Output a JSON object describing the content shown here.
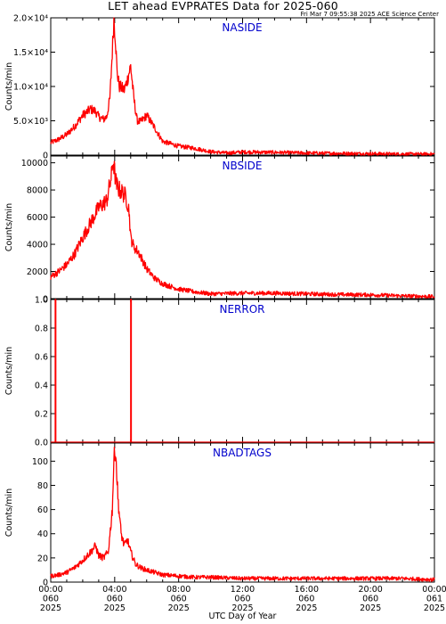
{
  "title": "LET ahead EVPRATES Data for 2025-060",
  "subtitle": "Fri Mar  7 09:55:38 2025 ACE Science Center",
  "xlabel": "UTC Day of Year",
  "colors": {
    "trace": "#ff0000",
    "panel_label": "#0000cc",
    "axis": "#000000"
  },
  "chart_data": [
    {
      "type": "line",
      "panel": "NASIDE",
      "ylabel": "Counts/min",
      "ylim": [
        0,
        20000
      ],
      "yticks": [
        {
          "v": 0,
          "label": "0"
        },
        {
          "v": 5000,
          "label": "5.0×10³"
        },
        {
          "v": 10000,
          "label": "1.0×10⁴"
        },
        {
          "v": 15000,
          "label": "1.5×10⁴"
        },
        {
          "v": 20000,
          "label": "2.0×10⁴"
        }
      ],
      "x": [
        0,
        0.5,
        1,
        1.5,
        2,
        2.5,
        2.8,
        3,
        3.3,
        3.5,
        3.7,
        3.85,
        3.95,
        4.05,
        4.15,
        4.3,
        4.6,
        4.8,
        5,
        5.2,
        5.4,
        5.6,
        6,
        6.5,
        7,
        8,
        9,
        10,
        11,
        12,
        14,
        16,
        18,
        20,
        22,
        24
      ],
      "values": [
        1800,
        2300,
        3000,
        4200,
        5800,
        6700,
        6400,
        5600,
        5200,
        5600,
        8200,
        15000,
        20000,
        17000,
        12000,
        10000,
        9500,
        11000,
        13000,
        8200,
        5100,
        4800,
        5800,
        4000,
        2000,
        1300,
        1000,
        500,
        300,
        450,
        400,
        300,
        250,
        200,
        150,
        150
      ]
    },
    {
      "type": "line",
      "panel": "NBSIDE",
      "ylabel": "Counts/min",
      "ylim": [
        0,
        10500
      ],
      "yticks": [
        {
          "v": 0,
          "label": "0"
        },
        {
          "v": 2000,
          "label": "2000"
        },
        {
          "v": 4000,
          "label": "4000"
        },
        {
          "v": 6000,
          "label": "6000"
        },
        {
          "v": 8000,
          "label": "8000"
        },
        {
          "v": 10000,
          "label": "10000"
        }
      ],
      "x": [
        0,
        0.5,
        1,
        1.5,
        2,
        2.5,
        3,
        3.5,
        3.8,
        3.9,
        4.0,
        4.1,
        4.3,
        4.5,
        4.7,
        4.9,
        5.0,
        5.2,
        5.5,
        6,
        6.5,
        7,
        8,
        9,
        10,
        12,
        14,
        16,
        18,
        20,
        22,
        24
      ],
      "values": [
        1600,
        2000,
        2500,
        3300,
        4500,
        5600,
        6700,
        7200,
        9000,
        10200,
        9300,
        8400,
        8000,
        7800,
        7500,
        6500,
        4500,
        3800,
        3400,
        2200,
        1500,
        1100,
        700,
        500,
        350,
        400,
        400,
        350,
        300,
        280,
        200,
        150
      ]
    },
    {
      "type": "line",
      "panel": "NERROR",
      "ylabel": "Counts/min",
      "ylim": [
        0,
        1.0
      ],
      "yticks": [
        {
          "v": 0,
          "label": "0.0"
        },
        {
          "v": 0.2,
          "label": "0.2"
        },
        {
          "v": 0.4,
          "label": "0.4"
        },
        {
          "v": 0.6,
          "label": "0.6"
        },
        {
          "v": 0.8,
          "label": "0.8"
        },
        {
          "v": 1.0,
          "label": "1.0"
        }
      ],
      "x": [
        0,
        0.28,
        0.28,
        0.32,
        0.32,
        5.0,
        5.0,
        5.04,
        5.04,
        24
      ],
      "values": [
        0,
        0,
        1,
        1,
        0,
        0,
        1,
        1,
        0,
        0
      ]
    },
    {
      "type": "line",
      "panel": "NBADTAGS",
      "ylabel": "Counts/min",
      "ylim": [
        0,
        115
      ],
      "yticks": [
        {
          "v": 0,
          "label": "0"
        },
        {
          "v": 20,
          "label": "20"
        },
        {
          "v": 40,
          "label": "40"
        },
        {
          "v": 60,
          "label": "60"
        },
        {
          "v": 80,
          "label": "80"
        },
        {
          "v": 100,
          "label": "100"
        }
      ],
      "x": [
        0,
        0.5,
        1,
        1.5,
        2,
        2.5,
        2.8,
        3,
        3.3,
        3.6,
        3.85,
        3.95,
        4.05,
        4.2,
        4.4,
        4.6,
        4.8,
        5.0,
        5.3,
        5.6,
        6,
        6.5,
        7,
        8,
        9,
        10,
        12,
        14,
        16,
        18,
        20,
        22,
        24
      ],
      "values": [
        5,
        6,
        8,
        12,
        18,
        25,
        30,
        22,
        20,
        25,
        60,
        100,
        112,
        70,
        40,
        30,
        35,
        25,
        15,
        12,
        10,
        8,
        6,
        5,
        4,
        4,
        3,
        3,
        3,
        3,
        3,
        3,
        2
      ]
    }
  ],
  "xaxis": {
    "xlim": [
      0,
      24
    ],
    "ticks": [
      {
        "v": 0,
        "lines": [
          "00:00",
          "060",
          "2025"
        ]
      },
      {
        "v": 4,
        "lines": [
          "04:00",
          "060",
          "2025"
        ]
      },
      {
        "v": 8,
        "lines": [
          "08:00",
          "060",
          "2025"
        ]
      },
      {
        "v": 12,
        "lines": [
          "12:00",
          "060",
          "2025"
        ]
      },
      {
        "v": 16,
        "lines": [
          "16:00",
          "060",
          "2025"
        ]
      },
      {
        "v": 20,
        "lines": [
          "20:00",
          "060",
          "2025"
        ]
      },
      {
        "v": 24,
        "lines": [
          "00:00",
          "061",
          "2025"
        ]
      }
    ]
  }
}
